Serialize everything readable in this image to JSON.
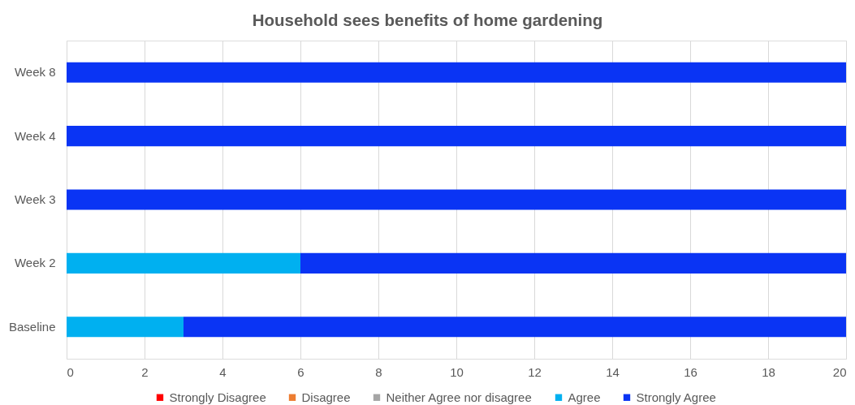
{
  "chart_data": {
    "type": "bar",
    "orientation": "horizontal",
    "stacked": true,
    "title": "Household sees benefits of home gardening",
    "categories": [
      "Week 8",
      "Week 4",
      "Week 3",
      "Week 2",
      "Baseline"
    ],
    "series": [
      {
        "name": "Strongly Disagree",
        "color": "#ff0000",
        "values": [
          0,
          0,
          0,
          0,
          0
        ]
      },
      {
        "name": "Disagree",
        "color": "#ed7d31",
        "values": [
          0,
          0,
          0,
          0,
          0
        ]
      },
      {
        "name": "Neither Agree nor disagree",
        "color": "#a5a5a5",
        "values": [
          0,
          0,
          0,
          0,
          0
        ]
      },
      {
        "name": "Agree",
        "color": "#00b0f0",
        "values": [
          0,
          0,
          0,
          6,
          3
        ]
      },
      {
        "name": "Strongly Agree",
        "color": "#0a34f4",
        "values": [
          20,
          20,
          20,
          14,
          17
        ]
      }
    ],
    "xlim": [
      0,
      20
    ],
    "xticks": [
      0,
      2,
      4,
      6,
      8,
      10,
      12,
      14,
      16,
      18,
      20
    ],
    "grid": "x",
    "legend": "bottom"
  }
}
